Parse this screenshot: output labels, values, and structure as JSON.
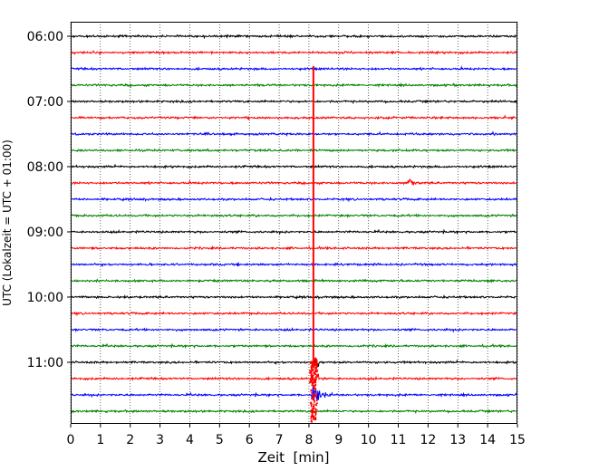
{
  "chart_data": {
    "type": "line",
    "xlabel": "Zeit  [min]",
    "ylabel": "UTC (Lokalzeit = UTC + 01:00)",
    "xlim": [
      0,
      15
    ],
    "x_ticks": [
      "0",
      "1",
      "2",
      "3",
      "4",
      "5",
      "6",
      "7",
      "8",
      "9",
      "10",
      "11",
      "12",
      "13",
      "14",
      "15"
    ],
    "y_ticks": [
      "06:00",
      "07:00",
      "08:00",
      "09:00",
      "10:00",
      "11:00"
    ],
    "y_tick_trace_index": [
      0,
      4,
      8,
      12,
      16,
      20
    ],
    "trace_minutes_apart": 15,
    "trace_colors": [
      "#000000",
      "#ff0000",
      "#0000ff",
      "#008000"
    ],
    "grid_x": true,
    "trace_count": 24,
    "events": [
      {
        "time_min": 8.15,
        "onset_trace": 2,
        "peak_trace": 22,
        "description": "grosses Erdbeben"
      },
      {
        "time_min": 11.35,
        "onset_trace": 9,
        "description": "kleines Ereignis"
      }
    ]
  }
}
